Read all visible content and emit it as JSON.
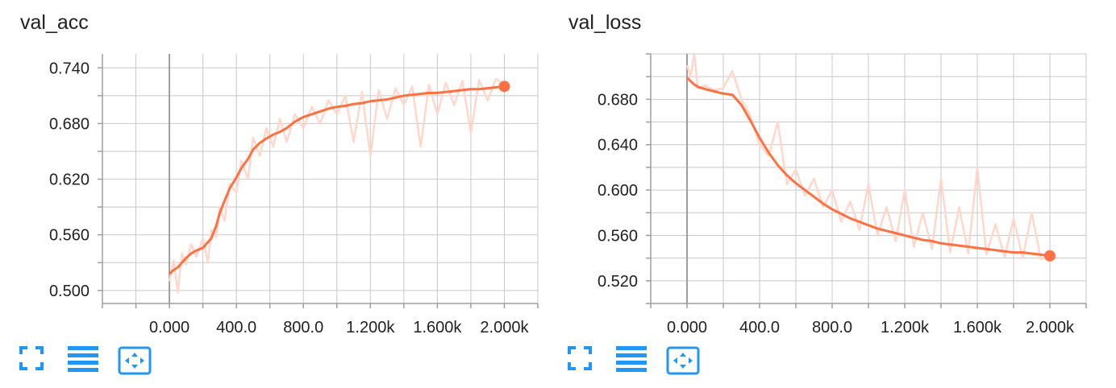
{
  "colors": {
    "accent": "#ff7043",
    "raw": "#ffd7cb",
    "grid": "#c8c8c8",
    "axis": "#9e9e9e",
    "toolbar": "#2196f3"
  },
  "toolbar": {
    "icons": [
      "expand-icon",
      "list-icon",
      "fit-domain-icon"
    ]
  },
  "chart_data": [
    {
      "type": "line",
      "title": "val_acc",
      "x_ticks": [
        0,
        400,
        800,
        1200,
        1600,
        2000
      ],
      "x_tick_labels": [
        "0.000",
        "400.0",
        "800.0",
        "1.200k",
        "1.600k",
        "2.000k"
      ],
      "xlim": [
        -400,
        2200
      ],
      "y_ticks": [
        0.5,
        0.56,
        0.62,
        0.68,
        0.74
      ],
      "y_tick_labels": [
        "0.500",
        "0.560",
        "0.620",
        "0.680",
        "0.740"
      ],
      "ylim": [
        0.486,
        0.755
      ],
      "grid": true,
      "series": [
        {
          "role": "smoothed",
          "x": [
            0,
            25,
            50,
            75,
            100,
            130,
            160,
            200,
            230,
            250,
            280,
            300,
            330,
            360,
            400,
            430,
            470,
            500,
            540,
            580,
            620,
            660,
            700,
            750,
            800,
            850,
            900,
            950,
            1000,
            1050,
            1100,
            1150,
            1200,
            1250,
            1300,
            1350,
            1400,
            1450,
            1500,
            1550,
            1600,
            1650,
            1700,
            1750,
            1800,
            1850,
            1900,
            1950,
            2000
          ],
          "values": [
            0.518,
            0.522,
            0.525,
            0.53,
            0.535,
            0.54,
            0.543,
            0.546,
            0.552,
            0.556,
            0.57,
            0.583,
            0.597,
            0.61,
            0.622,
            0.632,
            0.642,
            0.652,
            0.659,
            0.664,
            0.668,
            0.671,
            0.675,
            0.682,
            0.687,
            0.69,
            0.693,
            0.696,
            0.698,
            0.699,
            0.701,
            0.702,
            0.704,
            0.705,
            0.706,
            0.708,
            0.71,
            0.711,
            0.712,
            0.713,
            0.713,
            0.714,
            0.715,
            0.716,
            0.717,
            0.717,
            0.718,
            0.719,
            0.72
          ]
        },
        {
          "role": "raw",
          "x": [
            0,
            25,
            50,
            75,
            100,
            130,
            160,
            200,
            230,
            250,
            280,
            300,
            330,
            360,
            400,
            430,
            470,
            500,
            540,
            580,
            620,
            660,
            700,
            750,
            800,
            850,
            900,
            950,
            1000,
            1050,
            1100,
            1150,
            1200,
            1250,
            1300,
            1350,
            1400,
            1450,
            1500,
            1550,
            1600,
            1650,
            1700,
            1750,
            1800,
            1850,
            1900,
            1950,
            2000
          ],
          "values": [
            0.51,
            0.532,
            0.498,
            0.54,
            0.528,
            0.55,
            0.536,
            0.556,
            0.53,
            0.565,
            0.558,
            0.59,
            0.575,
            0.615,
            0.605,
            0.64,
            0.62,
            0.665,
            0.645,
            0.675,
            0.655,
            0.685,
            0.66,
            0.69,
            0.675,
            0.698,
            0.68,
            0.705,
            0.69,
            0.71,
            0.66,
            0.714,
            0.645,
            0.716,
            0.685,
            0.718,
            0.7,
            0.72,
            0.655,
            0.722,
            0.69,
            0.724,
            0.7,
            0.726,
            0.67,
            0.727,
            0.705,
            0.728,
            0.722
          ]
        }
      ]
    },
    {
      "type": "line",
      "title": "val_loss",
      "x_ticks": [
        0,
        400,
        800,
        1200,
        1600,
        2000
      ],
      "x_tick_labels": [
        "0.000",
        "400.0",
        "800.0",
        "1.200k",
        "1.600k",
        "2.000k"
      ],
      "xlim": [
        -200,
        2200
      ],
      "y_ticks": [
        0.52,
        0.56,
        0.6,
        0.64,
        0.68
      ],
      "y_tick_labels": [
        "0.520",
        "0.560",
        "0.600",
        "0.640",
        "0.680"
      ],
      "ylim": [
        0.5,
        0.72
      ],
      "grid": true,
      "series": [
        {
          "role": "smoothed",
          "x": [
            0,
            20,
            40,
            60,
            100,
            150,
            200,
            250,
            300,
            350,
            400,
            450,
            500,
            550,
            600,
            650,
            700,
            750,
            800,
            850,
            900,
            950,
            1000,
            1050,
            1100,
            1150,
            1200,
            1250,
            1300,
            1350,
            1400,
            1450,
            1500,
            1550,
            1600,
            1650,
            1700,
            1750,
            1800,
            1850,
            1900,
            1950,
            2000
          ],
          "values": [
            0.699,
            0.696,
            0.693,
            0.691,
            0.689,
            0.687,
            0.685,
            0.684,
            0.675,
            0.661,
            0.646,
            0.633,
            0.622,
            0.613,
            0.606,
            0.6,
            0.594,
            0.588,
            0.583,
            0.579,
            0.575,
            0.572,
            0.569,
            0.566,
            0.564,
            0.562,
            0.56,
            0.558,
            0.556,
            0.555,
            0.553,
            0.552,
            0.551,
            0.55,
            0.549,
            0.548,
            0.547,
            0.546,
            0.545,
            0.545,
            0.544,
            0.543,
            0.542
          ]
        },
        {
          "role": "raw",
          "x": [
            0,
            20,
            40,
            60,
            100,
            150,
            200,
            250,
            300,
            350,
            400,
            450,
            500,
            550,
            600,
            650,
            700,
            750,
            800,
            850,
            900,
            950,
            1000,
            1050,
            1100,
            1150,
            1200,
            1250,
            1300,
            1350,
            1400,
            1450,
            1500,
            1550,
            1600,
            1650,
            1700,
            1750,
            1800,
            1850,
            1900,
            1950,
            2000
          ],
          "values": [
            0.71,
            0.7,
            0.72,
            0.69,
            0.692,
            0.688,
            0.69,
            0.705,
            0.68,
            0.665,
            0.64,
            0.63,
            0.66,
            0.605,
            0.618,
            0.595,
            0.61,
            0.585,
            0.6,
            0.572,
            0.59,
            0.565,
            0.605,
            0.56,
            0.585,
            0.555,
            0.6,
            0.55,
            0.58,
            0.548,
            0.61,
            0.545,
            0.585,
            0.544,
            0.62,
            0.543,
            0.57,
            0.541,
            0.575,
            0.54,
            0.58,
            0.539,
            0.542
          ]
        }
      ]
    }
  ]
}
